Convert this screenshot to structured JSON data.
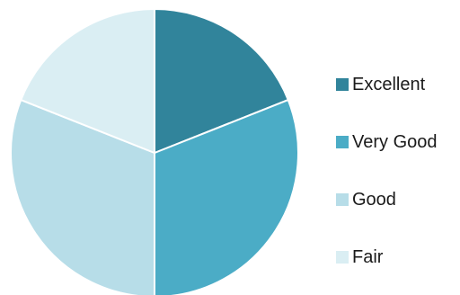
{
  "chart_data": {
    "type": "pie",
    "title": "",
    "categories": [
      "Excellent",
      "Very Good",
      "Good",
      "Fair"
    ],
    "values": [
      19,
      31,
      31,
      19
    ],
    "colors": [
      "#31849B",
      "#4BACC6",
      "#B7DDE8",
      "#DAEEF3"
    ],
    "start_angle": "12 o'clock",
    "direction": "clockwise",
    "legend": {
      "position": "right",
      "entries": [
        "Excellent",
        "Very Good",
        "Good",
        "Fair"
      ]
    }
  }
}
